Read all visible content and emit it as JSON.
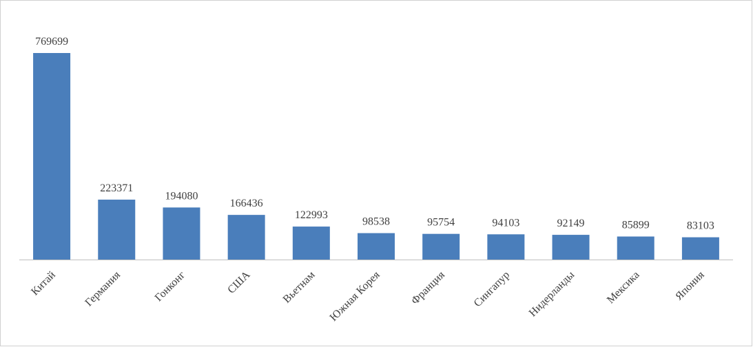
{
  "chart_data": {
    "type": "bar",
    "categories": [
      "Китай",
      "Германия",
      "Гонконг",
      "США",
      "Вьетнам",
      "Южная Корея",
      "Франция",
      "Сингапур",
      "Нидерланды",
      "Мексика",
      "Япония"
    ],
    "values": [
      769699,
      223371,
      194080,
      166436,
      122993,
      98538,
      95754,
      94103,
      92149,
      85899,
      83103
    ],
    "color": "#4a7ebb"
  }
}
